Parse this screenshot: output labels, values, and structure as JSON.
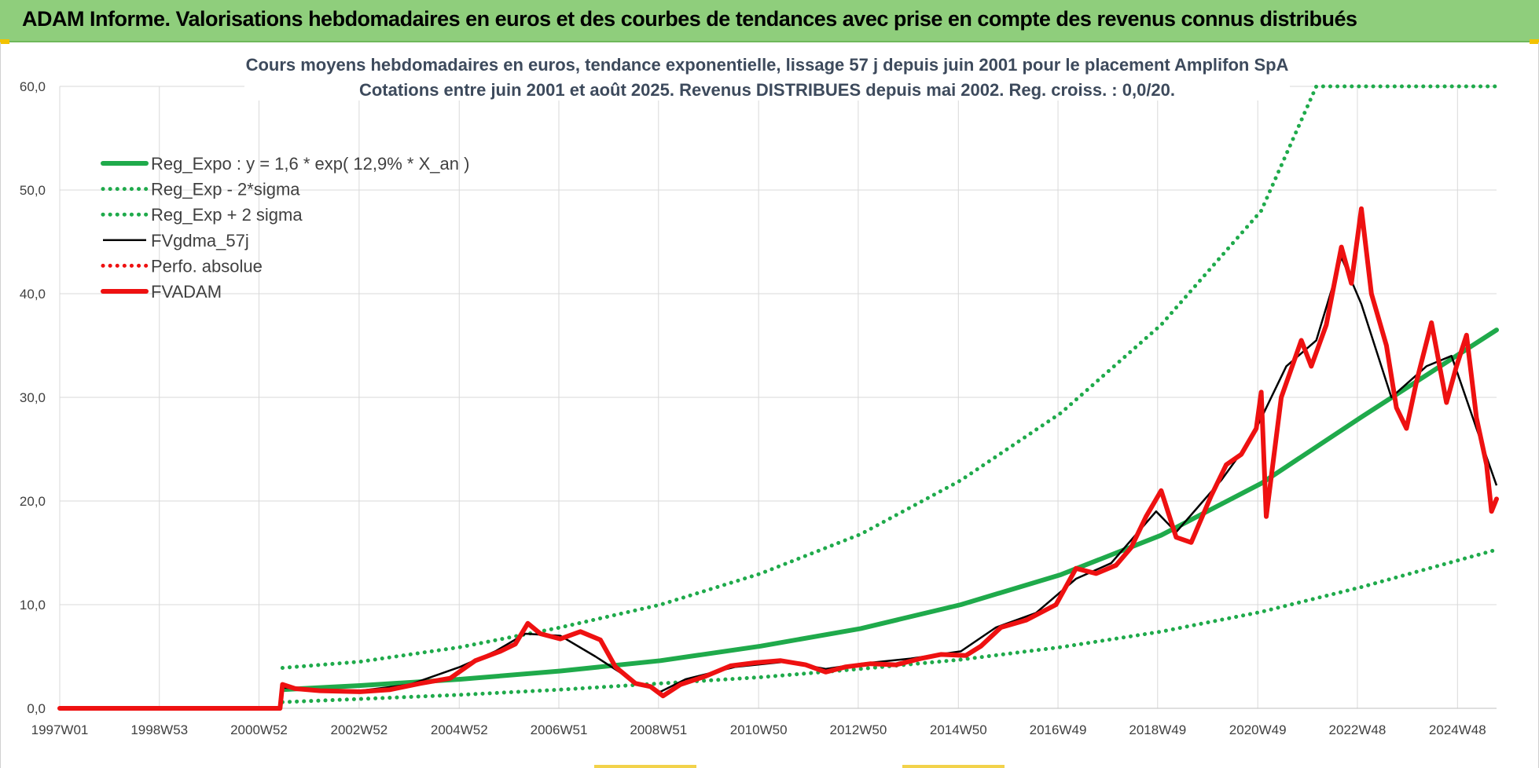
{
  "header": {
    "title": "ADAM Informe. Valorisations hebdomadaires en euros et des courbes de tendances avec prise en compte des revenus connus distribués"
  },
  "colors": {
    "header_bg": "#8fce7c",
    "green": "#1faa4b",
    "black": "#000000",
    "red": "#ee1111",
    "grid": "#d9d9d9"
  },
  "chart_data": {
    "type": "line",
    "title": "Cours moyens hebdomadaires en euros, tendance exponentielle, lissage 57 j depuis juin 2001 pour le placement Amplifon SpA",
    "subtitle": "Cotations entre juin 2001 et août 2025. Revenus DISTRIBUES depuis mai 2002. Reg. croiss. : 0,0/20.",
    "xlabel": "",
    "ylabel": "",
    "x_range": [
      1997.0,
      2025.7
    ],
    "ylim": [
      0,
      60
    ],
    "y_ticks": [
      "0,0",
      "10,0",
      "20,0",
      "30,0",
      "40,0",
      "50,0",
      "60,0"
    ],
    "y_tick_values": [
      0,
      10,
      20,
      30,
      40,
      50,
      60
    ],
    "x_tick_labels": [
      "1997W01",
      "1998W53",
      "2000W52",
      "2002W52",
      "2004W52",
      "2006W51",
      "2008W51",
      "2010W50",
      "2012W50",
      "2014W50",
      "2016W49",
      "2018W49",
      "2020W49",
      "2022W48",
      "2024W48"
    ],
    "x_tick_values": [
      1997.0,
      1998.99,
      2000.98,
      2002.98,
      2004.98,
      2006.97,
      2008.96,
      2010.96,
      2012.95,
      2014.95,
      2016.94,
      2018.93,
      2020.93,
      2022.92,
      2024.92
    ],
    "grid": true,
    "legend_position": "top-left",
    "series": [
      {
        "name": "Reg_Expo : y = 1,6 * exp( 12,9% *  X_an )",
        "style": "solid-thick",
        "color": "#1faa4b",
        "points": [
          [
            2001.45,
            1.8
          ],
          [
            2003,
            2.2
          ],
          [
            2005,
            2.8
          ],
          [
            2007,
            3.6
          ],
          [
            2009,
            4.6
          ],
          [
            2011,
            6.0
          ],
          [
            2013,
            7.7
          ],
          [
            2015,
            10.0
          ],
          [
            2017,
            12.9
          ],
          [
            2019,
            16.7
          ],
          [
            2021,
            21.7
          ],
          [
            2023,
            28.1
          ],
          [
            2025.7,
            36.5
          ]
        ]
      },
      {
        "name": "Reg_Exp - 2*sigma",
        "style": "dotted",
        "color": "#1faa4b",
        "points": [
          [
            2001.45,
            0.6
          ],
          [
            2003,
            0.9
          ],
          [
            2005,
            1.3
          ],
          [
            2007,
            1.8
          ],
          [
            2009,
            2.4
          ],
          [
            2011,
            3.0
          ],
          [
            2013,
            3.8
          ],
          [
            2015,
            4.7
          ],
          [
            2017,
            5.9
          ],
          [
            2019,
            7.4
          ],
          [
            2021,
            9.3
          ],
          [
            2023,
            11.7
          ],
          [
            2025.7,
            15.3
          ]
        ]
      },
      {
        "name": "Reg_Exp + 2 sigma",
        "style": "dotted",
        "color": "#1faa4b",
        "points": [
          [
            2001.45,
            3.9
          ],
          [
            2003,
            4.5
          ],
          [
            2005,
            5.9
          ],
          [
            2007,
            7.8
          ],
          [
            2009,
            10.0
          ],
          [
            2011,
            13.0
          ],
          [
            2013,
            16.8
          ],
          [
            2015,
            22.0
          ],
          [
            2017,
            28.5
          ],
          [
            2019,
            37.0
          ],
          [
            2021,
            48.0
          ],
          [
            2022.1,
            60.0
          ],
          [
            2025.7,
            60.0
          ]
        ]
      },
      {
        "name": "FVgdma_57j",
        "style": "solid",
        "color": "#000000",
        "points": [
          [
            1997.0,
            0
          ],
          [
            2001.4,
            0
          ],
          [
            2001.45,
            2.0
          ],
          [
            2002.0,
            1.8
          ],
          [
            2003.0,
            1.7
          ],
          [
            2004.0,
            2.3
          ],
          [
            2005.0,
            4.0
          ],
          [
            2005.7,
            5.5
          ],
          [
            2006.3,
            7.2
          ],
          [
            2007.0,
            7.0
          ],
          [
            2007.7,
            5.0
          ],
          [
            2008.5,
            2.5
          ],
          [
            2009.0,
            1.6
          ],
          [
            2009.5,
            2.8
          ],
          [
            2010.5,
            4.0
          ],
          [
            2011.5,
            4.5
          ],
          [
            2012.3,
            3.8
          ],
          [
            2013.0,
            4.3
          ],
          [
            2014.0,
            4.8
          ],
          [
            2015.0,
            5.5
          ],
          [
            2015.7,
            7.8
          ],
          [
            2016.5,
            9.2
          ],
          [
            2017.3,
            12.5
          ],
          [
            2018.0,
            14.0
          ],
          [
            2018.9,
            19.0
          ],
          [
            2019.3,
            17.0
          ],
          [
            2020.2,
            22.0
          ],
          [
            2020.8,
            26.0
          ],
          [
            2021.5,
            33.0
          ],
          [
            2022.1,
            35.5
          ],
          [
            2022.6,
            43.5
          ],
          [
            2023.0,
            39.0
          ],
          [
            2023.6,
            30.0
          ],
          [
            2024.3,
            33.0
          ],
          [
            2024.8,
            34.0
          ],
          [
            2025.3,
            27.0
          ],
          [
            2025.7,
            21.5
          ]
        ]
      },
      {
        "name": "Perfo. absolue",
        "style": "dotted",
        "color": "#ee1111",
        "points": []
      },
      {
        "name": "FVADAM",
        "style": "solid-thick",
        "color": "#ee1111",
        "points": [
          [
            1997.0,
            0
          ],
          [
            2001.4,
            0
          ],
          [
            2001.45,
            2.3
          ],
          [
            2001.7,
            1.9
          ],
          [
            2002.2,
            1.7
          ],
          [
            2003.0,
            1.6
          ],
          [
            2003.6,
            1.8
          ],
          [
            2004.2,
            2.4
          ],
          [
            2004.8,
            2.9
          ],
          [
            2005.3,
            4.6
          ],
          [
            2005.8,
            5.5
          ],
          [
            2006.1,
            6.2
          ],
          [
            2006.35,
            8.2
          ],
          [
            2006.6,
            7.2
          ],
          [
            2007.0,
            6.7
          ],
          [
            2007.4,
            7.4
          ],
          [
            2007.8,
            6.6
          ],
          [
            2008.1,
            4.0
          ],
          [
            2008.5,
            2.4
          ],
          [
            2008.8,
            2.1
          ],
          [
            2009.05,
            1.2
          ],
          [
            2009.4,
            2.3
          ],
          [
            2009.9,
            3.1
          ],
          [
            2010.4,
            4.1
          ],
          [
            2010.9,
            4.4
          ],
          [
            2011.4,
            4.6
          ],
          [
            2011.9,
            4.2
          ],
          [
            2012.3,
            3.5
          ],
          [
            2012.7,
            4.0
          ],
          [
            2013.2,
            4.3
          ],
          [
            2013.7,
            4.2
          ],
          [
            2014.2,
            4.8
          ],
          [
            2014.6,
            5.2
          ],
          [
            2015.1,
            5.1
          ],
          [
            2015.4,
            6.0
          ],
          [
            2015.8,
            7.8
          ],
          [
            2016.3,
            8.5
          ],
          [
            2016.9,
            10.0
          ],
          [
            2017.3,
            13.5
          ],
          [
            2017.7,
            13.0
          ],
          [
            2018.1,
            13.8
          ],
          [
            2018.4,
            15.5
          ],
          [
            2018.7,
            18.5
          ],
          [
            2019.0,
            21.0
          ],
          [
            2019.3,
            16.5
          ],
          [
            2019.6,
            16.0
          ],
          [
            2020.0,
            20.5
          ],
          [
            2020.3,
            23.5
          ],
          [
            2020.6,
            24.5
          ],
          [
            2020.9,
            27.0
          ],
          [
            2021.0,
            30.5
          ],
          [
            2021.1,
            18.5
          ],
          [
            2021.4,
            30.0
          ],
          [
            2021.8,
            35.5
          ],
          [
            2022.0,
            33.0
          ],
          [
            2022.3,
            37.0
          ],
          [
            2022.6,
            44.5
          ],
          [
            2022.8,
            41.0
          ],
          [
            2023.0,
            48.2
          ],
          [
            2023.2,
            40.0
          ],
          [
            2023.5,
            35.0
          ],
          [
            2023.7,
            29.0
          ],
          [
            2023.9,
            27.0
          ],
          [
            2024.1,
            31.5
          ],
          [
            2024.4,
            37.2
          ],
          [
            2024.7,
            29.5
          ],
          [
            2024.9,
            33.0
          ],
          [
            2025.1,
            36.0
          ],
          [
            2025.3,
            28.0
          ],
          [
            2025.5,
            23.5
          ],
          [
            2025.6,
            19.0
          ],
          [
            2025.7,
            20.2
          ]
        ]
      }
    ]
  }
}
